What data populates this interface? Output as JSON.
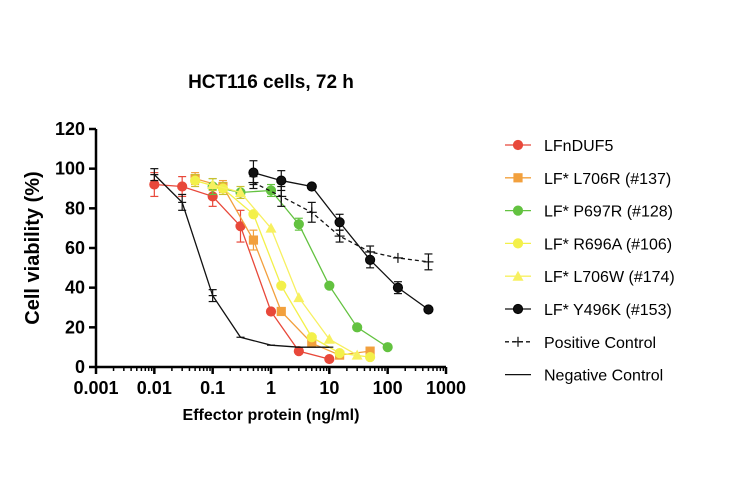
{
  "chart_data": {
    "type": "scatter",
    "title": "HCT116 cells, 72 h",
    "xlabel": "Effector protein (ng/ml)",
    "ylabel": "Cell viability (%)",
    "xscale": "log",
    "xlim": [
      0.001,
      1000
    ],
    "ylim": [
      0,
      120
    ],
    "xticks": [
      0.001,
      0.01,
      0.1,
      1,
      10,
      100,
      1000
    ],
    "xtick_labels": [
      "0.001",
      "0.01",
      "0.1",
      "1",
      "10",
      "100",
      "1000"
    ],
    "yticks": [
      0,
      20,
      40,
      60,
      80,
      100,
      120
    ],
    "ytick_labels": [
      "0",
      "20",
      "40",
      "60",
      "80",
      "100",
      "120"
    ],
    "legend_position": "right",
    "series": [
      {
        "name": "LFnDUF5",
        "color": "#e8483a",
        "marker": "circle",
        "line": "solid",
        "x": [
          0.01,
          0.03,
          0.1,
          0.3,
          1,
          3,
          10
        ],
        "y": [
          92,
          91,
          86,
          71,
          28,
          8,
          4
        ],
        "err": [
          6,
          5,
          5,
          8,
          0,
          0,
          0
        ]
      },
      {
        "name": "LF* L706R (#137)",
        "color": "#f2a03d",
        "marker": "square",
        "line": "solid",
        "x": [
          0.05,
          0.15,
          0.5,
          1.5,
          5,
          15,
          50
        ],
        "y": [
          95,
          91,
          64,
          28,
          12,
          6,
          8
        ],
        "err": [
          3,
          3,
          5,
          0,
          0,
          0,
          0
        ]
      },
      {
        "name": "LF* P697R (#128)",
        "color": "#63c240",
        "marker": "circle",
        "line": "solid",
        "x": [
          0.1,
          0.3,
          1,
          3,
          10,
          30,
          100
        ],
        "y": [
          91,
          88,
          89,
          72,
          41,
          20,
          10
        ],
        "err": [
          4,
          0,
          3,
          3,
          0,
          0,
          0
        ]
      },
      {
        "name": "LF* R696A (#106)",
        "color": "#f3f04a",
        "marker": "circle",
        "line": "solid",
        "x": [
          0.05,
          0.15,
          0.5,
          1.5,
          5,
          15,
          50
        ],
        "y": [
          94,
          90,
          77,
          41,
          15,
          7,
          5
        ],
        "err": [
          3,
          3,
          0,
          0,
          0,
          0,
          0
        ]
      },
      {
        "name": "LF* L706W (#174)",
        "color": "#f7f060",
        "marker": "triangle",
        "line": "solid",
        "x": [
          0.1,
          0.3,
          1,
          3,
          10,
          30
        ],
        "y": [
          92,
          88,
          70,
          35,
          14,
          6
        ],
        "err": [
          3,
          3,
          0,
          0,
          0,
          0
        ]
      },
      {
        "name": "LF* Y496K (#153)",
        "color": "#111111",
        "marker": "circle",
        "line": "solid",
        "x": [
          0.5,
          1.5,
          5,
          15,
          50,
          150,
          500
        ],
        "y": [
          98,
          94,
          91,
          73,
          54,
          40,
          29
        ],
        "err": [
          6,
          5,
          0,
          4,
          4,
          3,
          0
        ]
      },
      {
        "name": "Positive Control",
        "color": "#111111",
        "marker": "plus",
        "line": "dashed",
        "x": [
          0.5,
          1.5,
          5,
          15,
          50,
          150,
          500
        ],
        "y": [
          93,
          86,
          78,
          66,
          58,
          55,
          53
        ],
        "err": [
          3,
          5,
          5,
          3,
          3,
          0,
          4
        ]
      },
      {
        "name": "Negative Control",
        "color": "#111111",
        "marker": "tick",
        "line": "solid",
        "x": [
          0.01,
          0.03,
          0.1,
          0.3,
          1,
          3,
          10
        ],
        "y": [
          97,
          83,
          36,
          15,
          11,
          10,
          10
        ],
        "err": [
          3,
          4,
          3,
          0,
          0,
          0,
          0
        ]
      }
    ]
  }
}
